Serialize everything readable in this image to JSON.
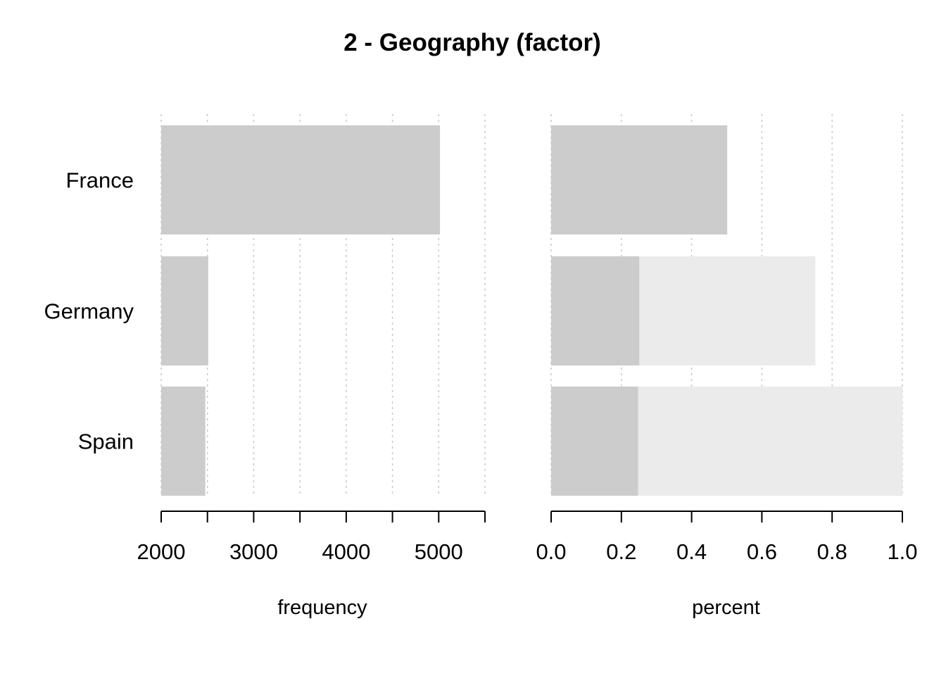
{
  "title": "2 - Geography (factor)",
  "colors": {
    "bar": "#cccccc",
    "cumulative": "#ebebeb",
    "grid": "#c8c8c8",
    "axis": "#000000"
  },
  "chart_data": [
    {
      "type": "bar",
      "orientation": "horizontal",
      "xlabel": "frequency",
      "categories": [
        "France",
        "Germany",
        "Spain"
      ],
      "values": [
        5014,
        2509,
        2477
      ],
      "xlim": [
        2000,
        5500
      ],
      "ticks": [
        2000,
        2500,
        3000,
        3500,
        4000,
        4500,
        5000,
        5500
      ],
      "tick_labels": [
        {
          "value": 2000,
          "label": "2000"
        },
        {
          "value": 3000,
          "label": "3000"
        },
        {
          "value": 4000,
          "label": "4000"
        },
        {
          "value": 5000,
          "label": "5000"
        }
      ],
      "grid": true
    },
    {
      "type": "bar",
      "orientation": "horizontal",
      "stacked": "cumulative",
      "xlabel": "percent",
      "categories": [
        "France",
        "Germany",
        "Spain"
      ],
      "values": [
        0.5014,
        0.2509,
        0.2477
      ],
      "cumulative": [
        0.5014,
        0.7523,
        1.0
      ],
      "xlim": [
        0,
        1
      ],
      "ticks": [
        0,
        0.2,
        0.4,
        0.6,
        0.8,
        1.0
      ],
      "tick_labels": [
        {
          "value": 0,
          "label": "0.0"
        },
        {
          "value": 0.2,
          "label": "0.2"
        },
        {
          "value": 0.4,
          "label": "0.4"
        },
        {
          "value": 0.6,
          "label": "0.6"
        },
        {
          "value": 0.8,
          "label": "0.8"
        },
        {
          "value": 1.0,
          "label": "1.0"
        }
      ],
      "grid": true
    }
  ]
}
